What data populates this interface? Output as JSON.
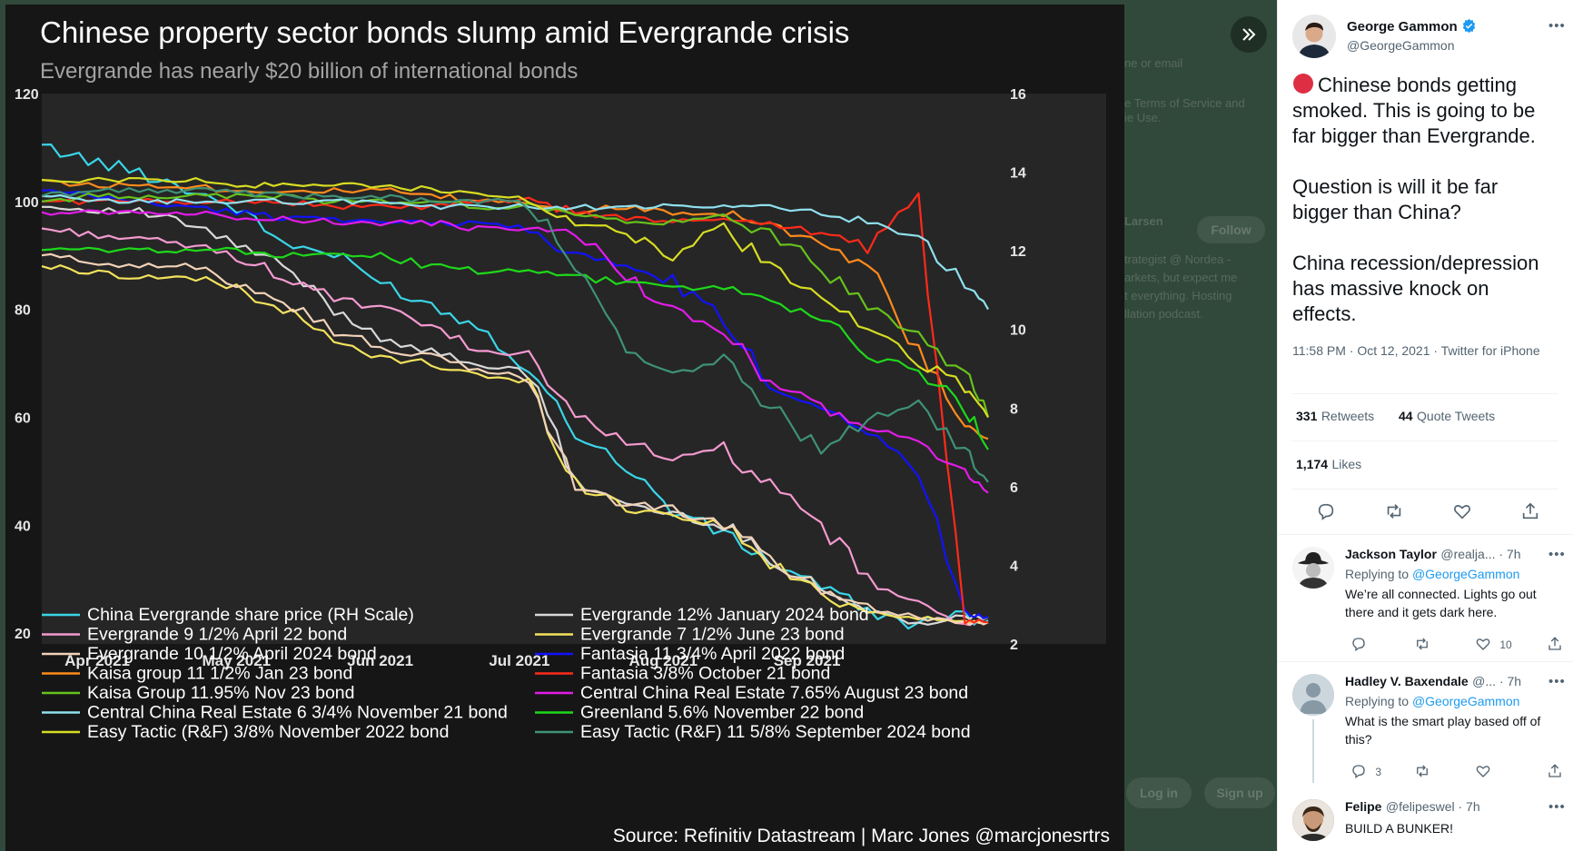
{
  "overlay": {
    "close_icon": "chevron-double-right-icon",
    "behind": {
      "login_hint": "ne or email",
      "terms": "e Terms of Service and",
      "terms2": "ie Use.",
      "user": "Larsen",
      "follow": "Follow",
      "bio": [
        "trategist @ Nordea -",
        "arkets, but expect me",
        "t everything. Hosting",
        "llation podcast."
      ],
      "log_in": "Log in",
      "sign_up": "Sign up"
    }
  },
  "chart": {
    "title": "Chinese property sector bonds slump amid Evergrande crisis",
    "subtitle": "Evergrande has nearly $20 billion of international bonds",
    "source": "Source: Refinitiv Datastream | Marc Jones @marcjonesrtrs",
    "bg_color": "#161616",
    "plot_bg_color": "#262626"
  },
  "chart_data": {
    "type": "line",
    "x": [
      "2021-03-22",
      "2021-04-01",
      "2021-04-12",
      "2021-04-22",
      "2021-05-03",
      "2021-05-13",
      "2021-05-24",
      "2021-06-03",
      "2021-06-14",
      "2021-06-24",
      "2021-07-05",
      "2021-07-15",
      "2021-07-26",
      "2021-08-05",
      "2021-08-16",
      "2021-08-26",
      "2021-09-06",
      "2021-09-16",
      "2021-09-27",
      "2021-10-07",
      "2021-10-12"
    ],
    "x_ticks": [
      "Apr 2021",
      "May 2021",
      "Jun 2021",
      "Jul 2021",
      "Aug 2021",
      "Sep 2021"
    ],
    "left_axis": {
      "ticks": [
        120,
        100,
        80,
        60,
        40,
        20
      ],
      "range": [
        18,
        120
      ]
    },
    "right_axis": {
      "ticks": [
        16,
        14,
        12,
        10,
        8,
        6,
        4,
        2
      ],
      "range": [
        2,
        16
      ]
    },
    "series": [
      {
        "name": "China Evergrande share price (RH Scale)",
        "color": "#3ad6e8",
        "axis": "right",
        "values": [
          14.7,
          14.3,
          14.0,
          13.6,
          13.1,
          12.2,
          11.9,
          11.2,
          10.6,
          10.1,
          9.0,
          7.4,
          6.5,
          5.4,
          4.8,
          4.1,
          3.5,
          2.8,
          2.5,
          2.7,
          2.6
        ]
      },
      {
        "name": "Evergrande 12% January 2024 bond",
        "color": "#d8d8d8",
        "axis": "left",
        "values": [
          99,
          98.5,
          98,
          96,
          92,
          88,
          80,
          75,
          72,
          70,
          68,
          48,
          44,
          42,
          40,
          34,
          28,
          24,
          22,
          23,
          23
        ]
      },
      {
        "name": "Evergrande 9 1/2% April 22 bond",
        "color": "#f49ad0",
        "axis": "left",
        "values": [
          95,
          94,
          93,
          92,
          90,
          86,
          82,
          80,
          77,
          72,
          72,
          60,
          56,
          52,
          54,
          47,
          40,
          30,
          25,
          22,
          22
        ]
      },
      {
        "name": "Evergrande 7 1/2% June 23 bond",
        "color": "#f3e25c",
        "axis": "left",
        "values": [
          88,
          87,
          86,
          86,
          84,
          80,
          74,
          71,
          70,
          68,
          66,
          48,
          43,
          42,
          40,
          33,
          27,
          24,
          23,
          22,
          22
        ]
      },
      {
        "name": "Evergrande 10 1/2% April 2024 bond",
        "color": "#f2d2b8",
        "axis": "left",
        "values": [
          90,
          89,
          88,
          88,
          85,
          82,
          76,
          73,
          71,
          69,
          67,
          47,
          44,
          43,
          40,
          34,
          28,
          25,
          23,
          22,
          22
        ]
      },
      {
        "name": "Fantasia 11 3/4% April 2022 bond",
        "color": "#1212ff",
        "axis": "left",
        "values": [
          102,
          101,
          100,
          99,
          98,
          97,
          97,
          96,
          96,
          96,
          95,
          90,
          88,
          85,
          78,
          66,
          62,
          58,
          50,
          24,
          23
        ]
      },
      {
        "name": "Kaisa group 11 1/2% Jan 23 bond",
        "color": "#ff8a1c",
        "axis": "left",
        "values": [
          104,
          103,
          103,
          103,
          102,
          102,
          102,
          102,
          101,
          100,
          100,
          98,
          99,
          98,
          98,
          96,
          92,
          88,
          72,
          58,
          56
        ]
      },
      {
        "name": "Fantasia 3/8% October 21 bond",
        "color": "#ff2a1a",
        "axis": "left",
        "values": [
          100,
          100,
          100,
          100,
          100,
          100,
          99,
          99,
          99,
          100,
          100,
          98,
          97,
          96,
          97,
          96,
          94,
          92,
          100,
          22,
          22
        ]
      },
      {
        "name": "Kaisa Group 11.95% Nov 23 bond",
        "color": "#66c21c",
        "axis": "left",
        "values": [
          100,
          101,
          101,
          101,
          101,
          101,
          100,
          100,
          100,
          99,
          99,
          98,
          96,
          96,
          97,
          94,
          88,
          80,
          76,
          68,
          60
        ]
      },
      {
        "name": "Central China Real Estate 7.65% August 23 bond",
        "color": "#e21ce8",
        "axis": "left",
        "values": [
          98,
          98,
          98,
          98,
          97,
          97,
          96,
          96,
          96,
          95,
          95,
          94,
          86,
          80,
          76,
          66,
          62,
          58,
          55,
          50,
          46
        ]
      },
      {
        "name": "Central China Real Estate 6 3/4% November 21 bond",
        "color": "#8fe0ee",
        "axis": "left",
        "values": [
          101,
          100,
          100,
          100,
          100,
          100,
          100,
          100,
          99,
          99,
          99,
          99,
          99,
          99,
          99,
          99,
          98,
          96,
          93,
          84,
          80
        ]
      },
      {
        "name": "Greenland 5.6% November 22 bond",
        "color": "#1ed81a",
        "axis": "left",
        "values": [
          91,
          91,
          91,
          91,
          91,
          90,
          90,
          90,
          88,
          87,
          87,
          86,
          85,
          84,
          84,
          82,
          78,
          72,
          68,
          62,
          54
        ]
      },
      {
        "name": "Easy Tactic (R&F) 3/8% November 2022 bond",
        "color": "#d7dd22",
        "axis": "left",
        "values": [
          104,
          104,
          104,
          104,
          103,
          103,
          103,
          103,
          102,
          101,
          101,
          96,
          94,
          90,
          95,
          88,
          82,
          76,
          70,
          66,
          60
        ]
      },
      {
        "name": "Easy Tactic (R&F) 11 5/8% September 2024 bond",
        "color": "#3f9276",
        "axis": "left",
        "values": [
          101,
          102,
          102,
          102,
          102,
          101,
          101,
          101,
          100,
          100,
          100,
          88,
          72,
          68,
          70,
          62,
          54,
          60,
          62,
          54,
          48
        ]
      }
    ],
    "legend_layout": "two columns below plot",
    "grid": false
  },
  "tweet": {
    "author_name": "George Gammon",
    "author_handle": "@GeorgeGammon",
    "verified_icon": "verified-badge-icon",
    "lines": [
      "🔴 Chinese bonds getting smoked. This is going to be far bigger than Evergrande.",
      "Question is will it be far bigger than China?",
      "China recession/depression has massive knock on effects."
    ],
    "timestamp": "11:58 PM · Oct 12, 2021 · Twitter for iPhone",
    "retweets": "331",
    "retweets_label": "Retweets",
    "quotes": "44",
    "quotes_label": "Quote Tweets",
    "likes": "1,174",
    "likes_label": "Likes"
  },
  "replies": [
    {
      "name": "Jackson Taylor",
      "meta": "@realja... · 7h",
      "replying_label": "Replying to",
      "replying_to": "@GeorgeGammon",
      "text": "We’re all connected.  Lights go out there and it gets dark here.",
      "reply_count": "",
      "rt_count": "",
      "like_count": "10"
    },
    {
      "name": "Hadley V. Baxendale",
      "meta": "@... · 7h",
      "replying_label": "Replying to",
      "replying_to": "@GeorgeGammon",
      "text": "What is the smart play based off of this?",
      "reply_count": "3",
      "rt_count": "",
      "like_count": ""
    },
    {
      "name": "Felipe",
      "meta": "@felipeswel · 7h",
      "replying_label": "",
      "replying_to": "",
      "text": "BUILD A BUNKER!",
      "reply_count": "",
      "rt_count": "",
      "like_count": ""
    }
  ]
}
